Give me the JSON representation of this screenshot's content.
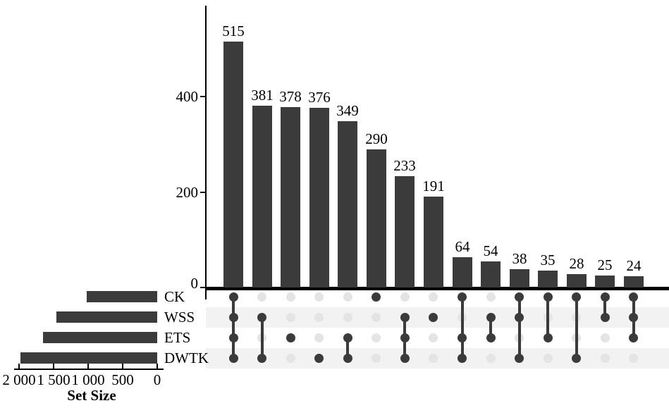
{
  "figure": {
    "title": "",
    "description": "UpSet plot of intersections among four sets"
  },
  "colors": {
    "bar": "#3b3b3b",
    "dot_filled": "#3b3b3b",
    "dot_empty": "#e4e4e4",
    "stripe": "#f2f2f2",
    "axis": "#000000",
    "background": "#ffffff",
    "text": "#000000"
  },
  "chart_data": {
    "type": "bar",
    "subtype": "upset-plot",
    "grid": false,
    "legend": null,
    "sets": [
      "CK",
      "WSS",
      "ETS",
      "DWTK"
    ],
    "intersections": {
      "title": "",
      "ylabel": "",
      "ylim": [
        0,
        590
      ],
      "y_ticks": [
        {
          "value": 0,
          "label": "0"
        },
        {
          "value": 200,
          "label": "200"
        },
        {
          "value": 400,
          "label": "400"
        }
      ],
      "bars": [
        {
          "value": 515,
          "sets": [
            "CK",
            "WSS",
            "ETS",
            "DWTK"
          ]
        },
        {
          "value": 381,
          "sets": [
            "WSS",
            "DWTK"
          ]
        },
        {
          "value": 378,
          "sets": [
            "ETS"
          ]
        },
        {
          "value": 376,
          "sets": [
            "DWTK"
          ]
        },
        {
          "value": 349,
          "sets": [
            "ETS",
            "DWTK"
          ]
        },
        {
          "value": 290,
          "sets": [
            "CK"
          ]
        },
        {
          "value": 233,
          "sets": [
            "WSS",
            "ETS",
            "DWTK"
          ]
        },
        {
          "value": 191,
          "sets": [
            "WSS"
          ]
        },
        {
          "value": 64,
          "sets": [
            "CK",
            "ETS",
            "DWTK"
          ]
        },
        {
          "value": 54,
          "sets": [
            "WSS",
            "ETS"
          ]
        },
        {
          "value": 38,
          "sets": [
            "CK",
            "WSS",
            "DWTK"
          ]
        },
        {
          "value": 35,
          "sets": [
            "CK",
            "ETS"
          ]
        },
        {
          "value": 28,
          "sets": [
            "CK",
            "DWTK"
          ]
        },
        {
          "value": 25,
          "sets": [
            "CK",
            "WSS"
          ]
        },
        {
          "value": 24,
          "sets": [
            "CK",
            "WSS",
            "ETS"
          ]
        }
      ]
    },
    "set_sizes": {
      "xlabel": "Set Size",
      "xlim": [
        2000,
        0
      ],
      "values_estimated": [
        1019,
        1461,
        1652,
        1984
      ],
      "ticks": [
        {
          "value": 2000,
          "label": "2 000"
        },
        {
          "value": 1500,
          "label": "1 500"
        },
        {
          "value": 1000,
          "label": "1 000"
        },
        {
          "value": 500,
          "label": "500"
        },
        {
          "value": 0,
          "label": "0"
        }
      ]
    }
  }
}
